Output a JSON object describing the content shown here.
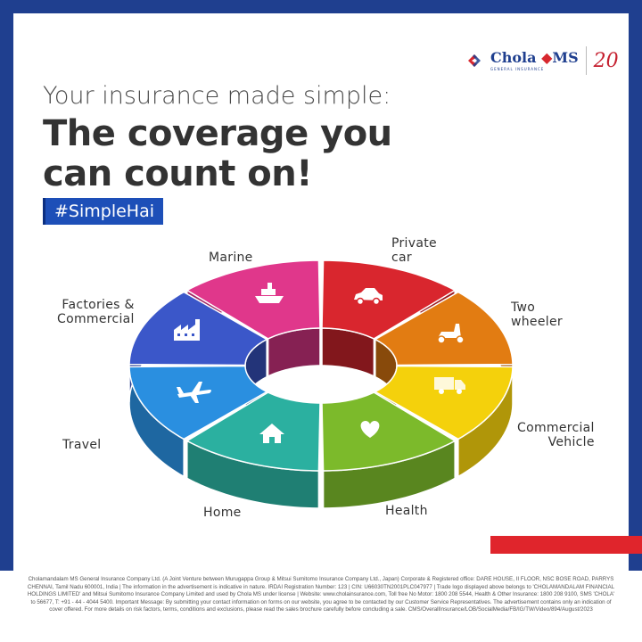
{
  "brand": {
    "name_a": "Chola",
    "name_b": "MS",
    "subtitle": "GENERAL INSURANCE",
    "anniversary": "20",
    "colors": {
      "frame": "#1f3f8f",
      "accent": "#e0252c"
    }
  },
  "headline": {
    "line1": "Your insurance made simple:",
    "line2": "The coverage you",
    "line3": "can count on!"
  },
  "hashtag": "#SimpleHai",
  "segments": [
    {
      "label": "Private car",
      "icon": "car-icon",
      "color": "#d9262e"
    },
    {
      "label": "Two wheeler",
      "icon": "scooter-icon",
      "color": "#e27c12"
    },
    {
      "label": "Commercial Vehicle",
      "icon": "truck-icon",
      "color": "#f4d10c"
    },
    {
      "label": "Health",
      "icon": "heart-icon",
      "color": "#7cba2b"
    },
    {
      "label": "Home",
      "icon": "house-icon",
      "color": "#2bb0a0"
    },
    {
      "label": "Travel",
      "icon": "airplane-icon",
      "color": "#2a8fe0"
    },
    {
      "label": "Factories & Commercial",
      "icon": "factory-icon",
      "color": "#3b57c9"
    },
    {
      "label": "Marine",
      "icon": "ship-icon",
      "color": "#e0378b"
    }
  ],
  "labels": {
    "private_car_1": "Private",
    "private_car_2": "car",
    "two_wheeler_1": "Two",
    "two_wheeler_2": "wheeler",
    "commercial_1": "Commercial",
    "commercial_2": "Vehicle",
    "health": "Health",
    "home": "Home",
    "travel": "Travel",
    "factories_1": "Factories &",
    "factories_2": "Commercial",
    "marine": "Marine"
  },
  "footer": "Cholamandalam MS General Insurance Company Ltd. (A Joint Venture between Murugappa Group & Mitsui Sumitomo Insurance Company Ltd., Japan) Corporate & Registered office: DARE HOUSE, II FLOOR, NSC BOSE ROAD, PARRYS CHENNAI, Tamil Nadu 600001, India | The information in the advertisement is indicative in nature. IRDAI Registration Number: 123 | CIN: U66030TN2001PLC047977 | Trade logo displayed above belongs to 'CHOLAMANDALAM FINANCIAL HOLDINGS LIMITED' and Mitsui Sumitomo Insurance Company Limited and used by Chola MS under license | Website: www.cholainsurance.com, Toll free No Motor: 1800 208 5544, Health & Other Insurance: 1800 208 9100, SMS 'CHOLA' to 56677, T: +91 - 44 - 4044 5400. Important Message: By submitting your contact information on forms on our website, you agree to be contacted by our Customer Service Representatives. The advertisement contains only an indication of cover offered. For more details on risk factors, terms, conditions and exclusions, please read the sales brochure carefully before concluding a sale. CMS/OverallInsurance/LOB/SocialMedia/FB/IG/TW/Video/894/August/2023"
}
